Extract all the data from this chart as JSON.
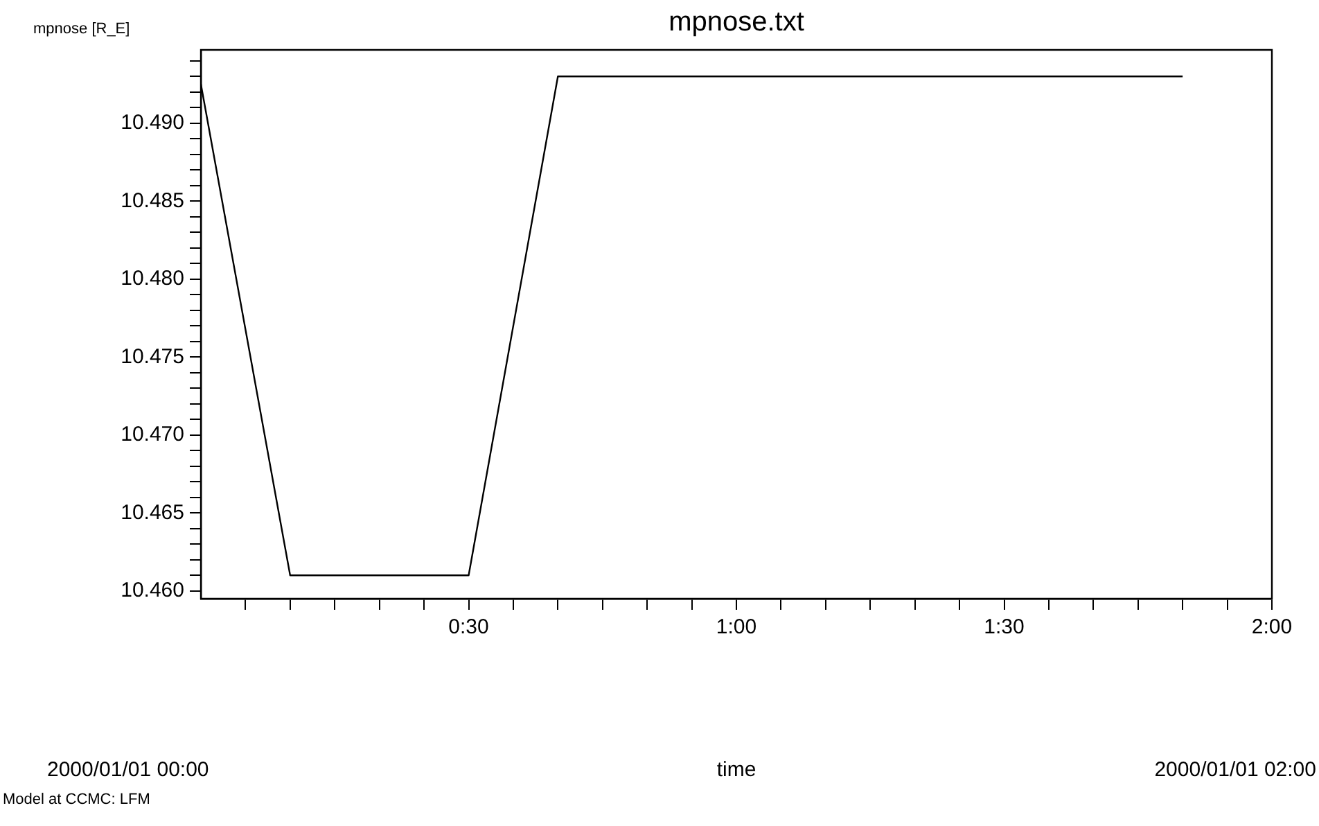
{
  "chart_data": {
    "type": "line",
    "title": "mpnose.txt",
    "ylabel": "mpnose [R_E]",
    "annotations": [
      "2000/01/01 00:00",
      "time",
      "2000/01/01 02:00",
      "Model at CCMC: LFM"
    ],
    "x": [
      0,
      0.16667,
      0.33333,
      0.5,
      0.66667,
      0.83333,
      1,
      1.16667,
      1.33333,
      1.5,
      1.66667,
      1.83333
    ],
    "series": [
      {
        "color": "#000000",
        "values": [
          10.4925,
          10.461,
          10.461,
          10.461,
          10.493,
          10.493,
          10.493,
          10.493,
          10.493,
          10.493,
          10.493,
          10.493
        ]
      }
    ],
    "xlim": [
      0,
      2
    ],
    "xticks": [
      {
        "value": 0.0833,
        "label": null
      },
      {
        "value": 0.1667,
        "label": null
      },
      {
        "value": 0.25,
        "label": null
      },
      {
        "value": 0.3333,
        "label": null
      },
      {
        "value": 0.4167,
        "label": null
      },
      {
        "value": 0.5,
        "label": "0:30"
      },
      {
        "value": 0.5833,
        "label": null
      },
      {
        "value": 0.6667,
        "label": null
      },
      {
        "value": 0.75,
        "label": null
      },
      {
        "value": 0.8333,
        "label": null
      },
      {
        "value": 0.9167,
        "label": null
      },
      {
        "value": 1,
        "label": "1:00"
      },
      {
        "value": 1.0833,
        "label": null
      },
      {
        "value": 1.1667,
        "label": null
      },
      {
        "value": 1.25,
        "label": null
      },
      {
        "value": 1.3333,
        "label": null
      },
      {
        "value": 1.4167,
        "label": null
      },
      {
        "value": 1.5,
        "label": "1:30"
      },
      {
        "value": 1.5833,
        "label": null
      },
      {
        "value": 1.6667,
        "label": null
      },
      {
        "value": 1.75,
        "label": null
      },
      {
        "value": 1.8333,
        "label": null
      },
      {
        "value": 1.9167,
        "label": null
      },
      {
        "value": 2,
        "label": "2:00"
      }
    ],
    "ylim": [
      10.4595,
      10.4947
    ],
    "yticks": [
      {
        "value": 10.46,
        "label": "10.460"
      },
      {
        "value": 10.461,
        "label": null
      },
      {
        "value": 10.462,
        "label": null
      },
      {
        "value": 10.463,
        "label": null
      },
      {
        "value": 10.464,
        "label": null
      },
      {
        "value": 10.465,
        "label": "10.465"
      },
      {
        "value": 10.466,
        "label": null
      },
      {
        "value": 10.467,
        "label": null
      },
      {
        "value": 10.468,
        "label": null
      },
      {
        "value": 10.469,
        "label": null
      },
      {
        "value": 10.47,
        "label": "10.470"
      },
      {
        "value": 10.471,
        "label": null
      },
      {
        "value": 10.472,
        "label": null
      },
      {
        "value": 10.473,
        "label": null
      },
      {
        "value": 10.474,
        "label": null
      },
      {
        "value": 10.475,
        "label": "10.475"
      },
      {
        "value": 10.476,
        "label": null
      },
      {
        "value": 10.477,
        "label": null
      },
      {
        "value": 10.478,
        "label": null
      },
      {
        "value": 10.479,
        "label": null
      },
      {
        "value": 10.48,
        "label": "10.480"
      },
      {
        "value": 10.481,
        "label": null
      },
      {
        "value": 10.482,
        "label": null
      },
      {
        "value": 10.483,
        "label": null
      },
      {
        "value": 10.484,
        "label": null
      },
      {
        "value": 10.485,
        "label": "10.485"
      },
      {
        "value": 10.486,
        "label": null
      },
      {
        "value": 10.487,
        "label": null
      },
      {
        "value": 10.488,
        "label": null
      },
      {
        "value": 10.489,
        "label": null
      },
      {
        "value": 10.49,
        "label": "10.490"
      },
      {
        "value": 10.491,
        "label": null
      },
      {
        "value": 10.492,
        "label": null
      },
      {
        "value": 10.493,
        "label": null
      },
      {
        "value": 10.494,
        "label": null
      }
    ],
    "grid": false,
    "legend": false
  }
}
